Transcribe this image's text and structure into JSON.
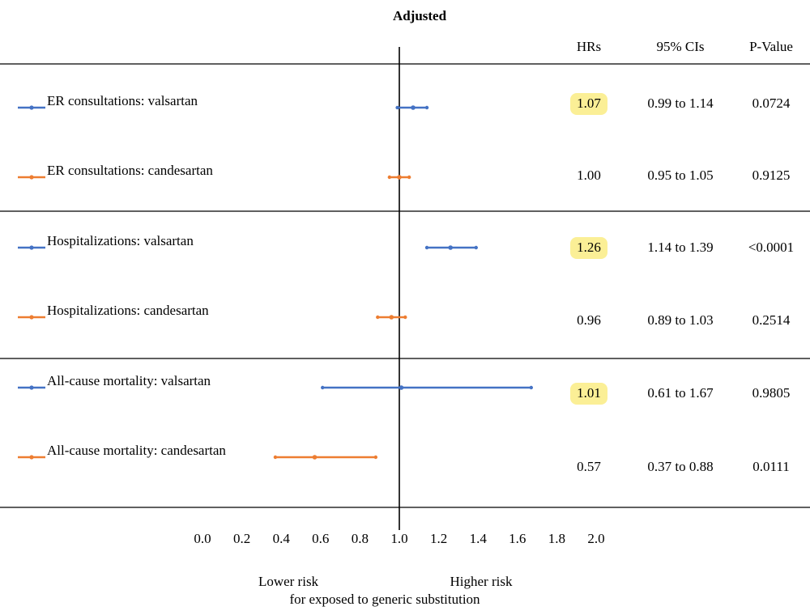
{
  "chart_data": {
    "type": "forest",
    "title": "Adjusted",
    "columns": {
      "hr": "HRs",
      "ci": "95% CIs",
      "p": "P-Value"
    },
    "x_ticks": [
      "0.0",
      "0.2",
      "0.4",
      "0.6",
      "0.8",
      "1.0",
      "1.2",
      "1.4",
      "1.6",
      "1.8",
      "2.0"
    ],
    "xlim": [
      0,
      2
    ],
    "reference_line": 1.0,
    "x_notes": {
      "lower": "Lower risk",
      "higher": "Higher risk",
      "caption": "for exposed to generic substitution"
    },
    "colors": {
      "valsartan": "#4472c4",
      "candesartan": "#ed7d31",
      "highlight": "#fbef96"
    },
    "rows": [
      {
        "label": "ER consultations: valsartan",
        "drug": "valsartan",
        "hr": 1.07,
        "lo": 0.99,
        "hi": 1.14,
        "hr_text": "1.07",
        "ci_text": "0.99 to 1.14",
        "p_text": "0.0724",
        "highlight": true
      },
      {
        "label": "ER consultations: candesartan",
        "drug": "candesartan",
        "hr": 1.0,
        "lo": 0.95,
        "hi": 1.05,
        "hr_text": "1.00",
        "ci_text": "0.95 to 1.05",
        "p_text": "0.9125",
        "highlight": false
      },
      {
        "label": "Hospitalizations:  valsartan",
        "drug": "valsartan",
        "hr": 1.26,
        "lo": 1.14,
        "hi": 1.39,
        "hr_text": "1.26",
        "ci_text": "1.14 to 1.39",
        "p_text": "<0.0001",
        "highlight": true
      },
      {
        "label": "Hospitalizations: candesartan",
        "drug": "candesartan",
        "hr": 0.96,
        "lo": 0.89,
        "hi": 1.03,
        "hr_text": "0.96",
        "ci_text": "0.89 to 1.03",
        "p_text": "0.2514",
        "highlight": false
      },
      {
        "label": "All-cause mortality: valsartan",
        "drug": "valsartan",
        "hr": 1.01,
        "lo": 0.61,
        "hi": 1.67,
        "hr_text": "1.01",
        "ci_text": "0.61 to 1.67",
        "p_text": "0.9805",
        "highlight": true
      },
      {
        "label": "All-cause mortality: candesartan",
        "drug": "candesartan",
        "hr": 0.57,
        "lo": 0.37,
        "hi": 0.88,
        "hr_text": "0.57",
        "ci_text": "0.37 to 0.88",
        "p_text": "0.0111",
        "highlight": false
      }
    ]
  }
}
